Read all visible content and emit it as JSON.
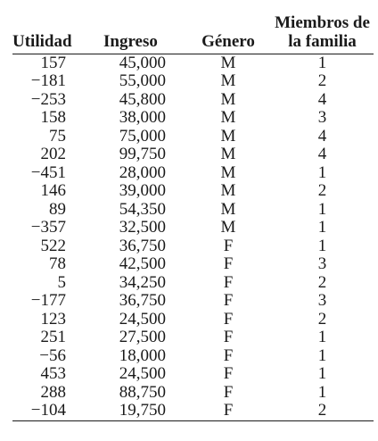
{
  "table": {
    "headers": {
      "utilidad": "Utilidad",
      "ingreso": "Ingreso",
      "genero": "Género",
      "familia_line1": "Miembros de",
      "familia_line2": "la familia"
    },
    "rows": [
      {
        "utilidad": "157",
        "ingreso": "45,000",
        "genero": "M",
        "familia": "1"
      },
      {
        "utilidad": "−181",
        "ingreso": "55,000",
        "genero": "M",
        "familia": "2"
      },
      {
        "utilidad": "−253",
        "ingreso": "45,800",
        "genero": "M",
        "familia": "4"
      },
      {
        "utilidad": "158",
        "ingreso": "38,000",
        "genero": "M",
        "familia": "3"
      },
      {
        "utilidad": "75",
        "ingreso": "75,000",
        "genero": "M",
        "familia": "4"
      },
      {
        "utilidad": "202",
        "ingreso": "99,750",
        "genero": "M",
        "familia": "4"
      },
      {
        "utilidad": "−451",
        "ingreso": "28,000",
        "genero": "M",
        "familia": "1"
      },
      {
        "utilidad": "146",
        "ingreso": "39,000",
        "genero": "M",
        "familia": "2"
      },
      {
        "utilidad": "89",
        "ingreso": "54,350",
        "genero": "M",
        "familia": "1"
      },
      {
        "utilidad": "−357",
        "ingreso": "32,500",
        "genero": "M",
        "familia": "1"
      },
      {
        "utilidad": "522",
        "ingreso": "36,750",
        "genero": "F",
        "familia": "1"
      },
      {
        "utilidad": "78",
        "ingreso": "42,500",
        "genero": "F",
        "familia": "3"
      },
      {
        "utilidad": "5",
        "ingreso": "34,250",
        "genero": "F",
        "familia": "2"
      },
      {
        "utilidad": "−177",
        "ingreso": "36,750",
        "genero": "F",
        "familia": "3"
      },
      {
        "utilidad": "123",
        "ingreso": "24,500",
        "genero": "F",
        "familia": "2"
      },
      {
        "utilidad": "251",
        "ingreso": "27,500",
        "genero": "F",
        "familia": "1"
      },
      {
        "utilidad": "−56",
        "ingreso": "18,000",
        "genero": "F",
        "familia": "1"
      },
      {
        "utilidad": "453",
        "ingreso": "24,500",
        "genero": "F",
        "familia": "1"
      },
      {
        "utilidad": "288",
        "ingreso": "88,750",
        "genero": "F",
        "familia": "1"
      },
      {
        "utilidad": "−104",
        "ingreso": "19,750",
        "genero": "F",
        "familia": "2"
      }
    ]
  }
}
